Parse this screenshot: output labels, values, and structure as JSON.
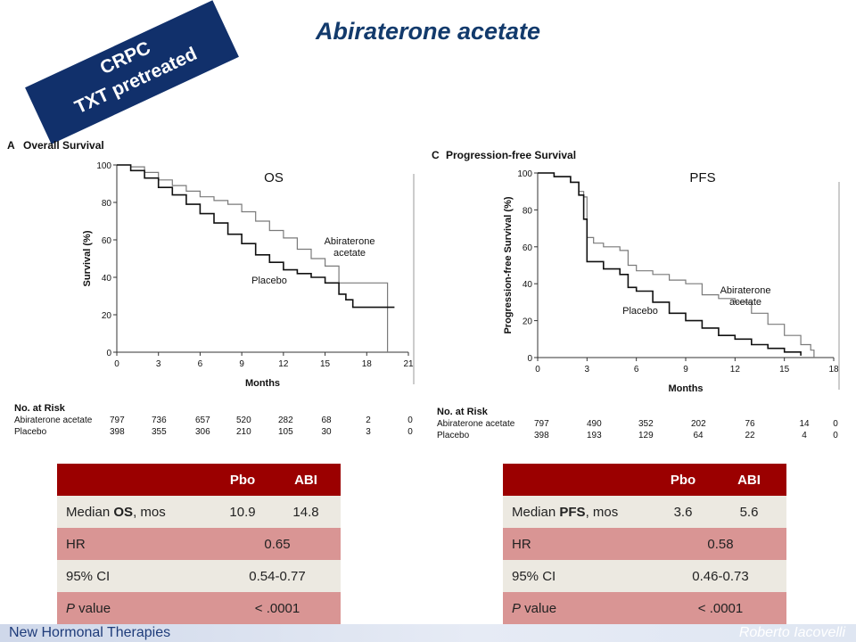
{
  "title": "Abiraterone acetate",
  "banner": {
    "line1": "CRPC",
    "line2": "TXT pretreated"
  },
  "footer": {
    "left": "New Hormonal Therapies",
    "right": "Roberto Iacovelli"
  },
  "panels": {
    "os": {
      "letter": "A",
      "subtitle": "Overall Survival",
      "tag": "OS"
    },
    "pfs": {
      "letter": "C",
      "subtitle": "Progression-free Survival",
      "tag": "PFS"
    }
  },
  "chart_data": [
    {
      "type": "line",
      "title": "Overall Survival",
      "xlabel": "Months",
      "ylabel": "Survival (%)",
      "xlim": [
        0,
        21
      ],
      "ylim": [
        0,
        100
      ],
      "xticks": [
        0,
        3,
        6,
        9,
        12,
        15,
        18,
        21
      ],
      "yticks": [
        0,
        20,
        40,
        60,
        80,
        100
      ],
      "series": [
        {
          "name": "Abiraterone acetate",
          "color": "#7a7a7a",
          "x": [
            0,
            1,
            2,
            3,
            4,
            5,
            6,
            7,
            8,
            9,
            10,
            11,
            12,
            13,
            14,
            15,
            16,
            17,
            18,
            19,
            19.5,
            19.5
          ],
          "y": [
            100,
            99,
            96,
            92,
            89,
            86,
            83,
            81,
            79,
            75,
            70,
            65,
            61,
            55,
            50,
            46,
            37,
            37,
            37,
            37,
            37,
            0
          ]
        },
        {
          "name": "Placebo",
          "color": "#111111",
          "x": [
            0,
            1,
            2,
            3,
            4,
            5,
            6,
            7,
            8,
            9,
            10,
            11,
            12,
            13,
            14,
            15,
            16,
            16.5,
            17,
            18,
            19,
            20
          ],
          "y": [
            100,
            97,
            93,
            88,
            84,
            79,
            74,
            69,
            63,
            58,
            52,
            48,
            44,
            42,
            40,
            37,
            31,
            28,
            24,
            24,
            24,
            24
          ]
        }
      ],
      "risk_table": {
        "label": "No. at Risk",
        "ticks": [
          "0",
          "3",
          "6",
          "9",
          "12",
          "15",
          "18",
          "21"
        ],
        "rows": [
          {
            "group": "Abiraterone acetate",
            "values": [
              "797",
              "736",
              "657",
              "520",
              "282",
              "68",
              "2",
              "0"
            ]
          },
          {
            "group": "Placebo",
            "values": [
              "398",
              "355",
              "306",
              "210",
              "105",
              "30",
              "3",
              "0"
            ]
          }
        ]
      }
    },
    {
      "type": "line",
      "title": "Progression-free Survival",
      "xlabel": "Months",
      "ylabel": "Progression-free Survival (%)",
      "xlim": [
        0,
        18
      ],
      "ylim": [
        0,
        100
      ],
      "xticks": [
        0,
        3,
        6,
        9,
        12,
        15,
        18
      ],
      "yticks": [
        0,
        20,
        40,
        60,
        80,
        100
      ],
      "series": [
        {
          "name": "Abiraterone acetate",
          "color": "#7a7a7a",
          "x": [
            0,
            1,
            2,
            2.5,
            2.8,
            3,
            3.4,
            4,
            5,
            5.5,
            6,
            7,
            8,
            9,
            10,
            11,
            12,
            13,
            14,
            15,
            16,
            16.6,
            16.8
          ],
          "y": [
            100,
            98,
            95,
            90,
            87,
            65,
            62,
            60,
            58,
            50,
            47,
            45,
            42,
            40,
            34,
            32,
            30,
            24,
            18,
            12,
            7,
            4,
            0
          ]
        },
        {
          "name": "Placebo",
          "color": "#111111",
          "x": [
            0,
            1,
            2,
            2.5,
            2.8,
            3,
            4,
            5,
            5.5,
            6,
            7,
            8,
            9,
            10,
            11,
            12,
            13,
            14,
            15,
            16
          ],
          "y": [
            100,
            98,
            95,
            88,
            75,
            52,
            48,
            45,
            38,
            36,
            30,
            24,
            20,
            16,
            12,
            10,
            7,
            5,
            3,
            1
          ]
        }
      ],
      "risk_table": {
        "label": "No. at Risk",
        "ticks": [
          "0",
          "3",
          "6",
          "9",
          "12",
          "15",
          "18"
        ],
        "rows": [
          {
            "group": "Abiraterone acetate",
            "values": [
              "797",
              "490",
              "352",
              "202",
              "76",
              "14",
              "0"
            ]
          },
          {
            "group": "Placebo",
            "values": [
              "398",
              "193",
              "129",
              "64",
              "22",
              "4",
              "0"
            ]
          }
        ]
      }
    }
  ],
  "tables": {
    "os": {
      "headers": [
        "",
        "Pbo",
        "ABI"
      ],
      "rows": [
        {
          "label_pre": "Median ",
          "label_bold": "OS",
          "label_post": ", mos",
          "pbo": "10.9",
          "abi": "14.8"
        },
        {
          "label": "HR",
          "value": "0.65"
        },
        {
          "label": "95% CI",
          "value": "0.54-0.77"
        },
        {
          "label": "P",
          "label_post": " value",
          "value": "< .0001"
        }
      ]
    },
    "pfs": {
      "headers": [
        "",
        "Pbo",
        "ABI"
      ],
      "rows": [
        {
          "label_pre": "Median ",
          "label_bold": "PFS",
          "label_post": ", mos",
          "pbo": "3.6",
          "abi": "5.6"
        },
        {
          "label": "HR",
          "value": "0.58"
        },
        {
          "label": "95% CI",
          "value": "0.46-0.73"
        },
        {
          "label": "P",
          "label_post": " value",
          "value": "< .0001"
        }
      ]
    }
  }
}
